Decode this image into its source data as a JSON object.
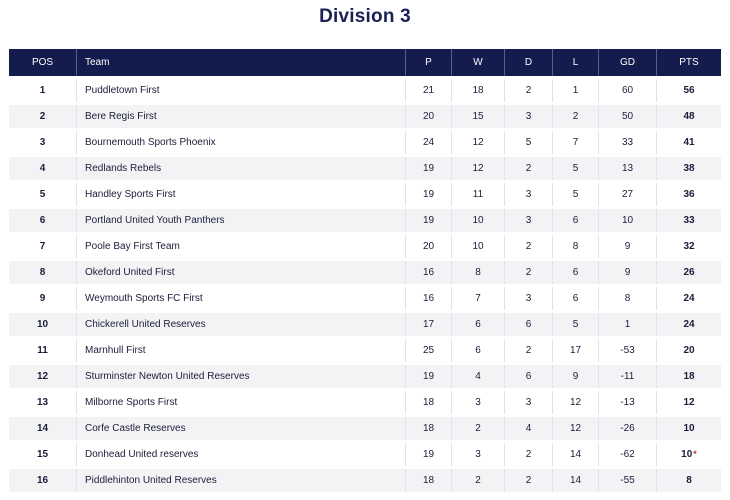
{
  "page": {
    "title": "Division 3",
    "accent": "#141b4d"
  },
  "table": {
    "headers": {
      "pos": "POS",
      "team": "Team",
      "p": "P",
      "w": "W",
      "d": "D",
      "l": "L",
      "gd": "GD",
      "pts": "PTS"
    },
    "rows": [
      {
        "pos": "1",
        "team": "Puddletown First",
        "p": "21",
        "w": "18",
        "d": "2",
        "l": "1",
        "gd": "60",
        "pts": "56",
        "mark": ""
      },
      {
        "pos": "2",
        "team": "Bere Regis First",
        "p": "20",
        "w": "15",
        "d": "3",
        "l": "2",
        "gd": "50",
        "pts": "48",
        "mark": ""
      },
      {
        "pos": "3",
        "team": "Bournemouth Sports Phoenix",
        "p": "24",
        "w": "12",
        "d": "5",
        "l": "7",
        "gd": "33",
        "pts": "41",
        "mark": ""
      },
      {
        "pos": "4",
        "team": "Redlands Rebels",
        "p": "19",
        "w": "12",
        "d": "2",
        "l": "5",
        "gd": "13",
        "pts": "38",
        "mark": ""
      },
      {
        "pos": "5",
        "team": "Handley Sports First",
        "p": "19",
        "w": "11",
        "d": "3",
        "l": "5",
        "gd": "27",
        "pts": "36",
        "mark": ""
      },
      {
        "pos": "6",
        "team": "Portland United Youth Panthers",
        "p": "19",
        "w": "10",
        "d": "3",
        "l": "6",
        "gd": "10",
        "pts": "33",
        "mark": ""
      },
      {
        "pos": "7",
        "team": "Poole Bay First Team",
        "p": "20",
        "w": "10",
        "d": "2",
        "l": "8",
        "gd": "9",
        "pts": "32",
        "mark": ""
      },
      {
        "pos": "8",
        "team": "Okeford United First",
        "p": "16",
        "w": "8",
        "d": "2",
        "l": "6",
        "gd": "9",
        "pts": "26",
        "mark": ""
      },
      {
        "pos": "9",
        "team": "Weymouth Sports FC First",
        "p": "16",
        "w": "7",
        "d": "3",
        "l": "6",
        "gd": "8",
        "pts": "24",
        "mark": ""
      },
      {
        "pos": "10",
        "team": "Chickerell United Reserves",
        "p": "17",
        "w": "6",
        "d": "6",
        "l": "5",
        "gd": "1",
        "pts": "24",
        "mark": ""
      },
      {
        "pos": "11",
        "team": "Marnhull First",
        "p": "25",
        "w": "6",
        "d": "2",
        "l": "17",
        "gd": "-53",
        "pts": "20",
        "mark": ""
      },
      {
        "pos": "12",
        "team": "Sturminster Newton United Reserves",
        "p": "19",
        "w": "4",
        "d": "6",
        "l": "9",
        "gd": "-11",
        "pts": "18",
        "mark": ""
      },
      {
        "pos": "13",
        "team": "Milborne Sports First",
        "p": "18",
        "w": "3",
        "d": "3",
        "l": "12",
        "gd": "-13",
        "pts": "12",
        "mark": ""
      },
      {
        "pos": "14",
        "team": "Corfe Castle Reserves",
        "p": "18",
        "w": "2",
        "d": "4",
        "l": "12",
        "gd": "-26",
        "pts": "10",
        "mark": ""
      },
      {
        "pos": "15",
        "team": "Donhead United reserves",
        "p": "19",
        "w": "3",
        "d": "2",
        "l": "14",
        "gd": "-62",
        "pts": "10",
        "mark": "*"
      },
      {
        "pos": "16",
        "team": "Piddlehinton United Reserves",
        "p": "18",
        "w": "2",
        "d": "2",
        "l": "14",
        "gd": "-55",
        "pts": "8",
        "mark": ""
      }
    ]
  }
}
